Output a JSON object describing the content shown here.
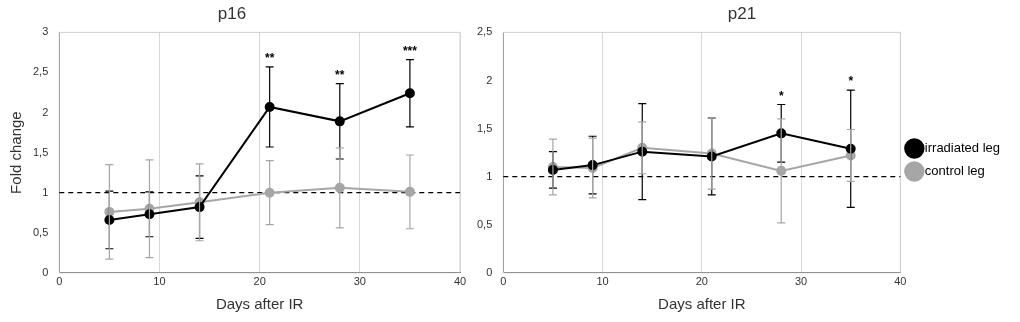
{
  "chart_data": [
    {
      "type": "line",
      "title": "p16",
      "x_label": "Days after IR",
      "y_label": "Fold change",
      "xlim": [
        0,
        40
      ],
      "xticks": [
        0,
        10,
        20,
        30,
        40
      ],
      "ylim": [
        0,
        3
      ],
      "yticks": [
        0,
        {
          "value": 0.5,
          "label": "0,5"
        },
        1,
        {
          "value": 1.5,
          "label": "1,5"
        },
        2,
        {
          "value": 2.5,
          "label": "2,5"
        },
        3
      ],
      "grid": "x",
      "reference_line": 1,
      "series": [
        {
          "name": "irradiated leg",
          "color": "#000000",
          "marker": "circle",
          "line_style": "solid",
          "x": [
            5,
            9,
            14,
            21,
            28,
            35
          ],
          "values": [
            0.66,
            0.73,
            0.82,
            2.07,
            1.89,
            2.24
          ],
          "errors": [
            0.36,
            0.28,
            0.39,
            0.5,
            0.47,
            0.42
          ]
        },
        {
          "name": "control leg",
          "color": "#a6a6a6",
          "marker": "circle",
          "line_style": "solid",
          "x": [
            5,
            9,
            14,
            21,
            28,
            35
          ],
          "values": [
            0.76,
            0.8,
            0.88,
            1.0,
            1.06,
            1.01
          ],
          "errors": [
            0.59,
            0.61,
            0.48,
            0.4,
            0.5,
            0.46
          ]
        }
      ],
      "annotations": [
        {
          "x": 21,
          "text": "**"
        },
        {
          "x": 28,
          "text": "**"
        },
        {
          "x": 35,
          "text": "***"
        }
      ]
    },
    {
      "type": "line",
      "title": "p21",
      "x_label": "Days after IR",
      "xlim": [
        0,
        40
      ],
      "xticks": [
        0,
        10,
        20,
        30,
        40
      ],
      "ylim": [
        0,
        2.5
      ],
      "yticks": [
        0,
        {
          "value": 0.5,
          "label": "0,5"
        },
        1,
        {
          "value": 1.5,
          "label": "1,5"
        },
        2,
        {
          "value": 2.5,
          "label": "2,5"
        }
      ],
      "grid": "x",
      "reference_line": 1,
      "legend": "right",
      "series": [
        {
          "name": "irradiated leg",
          "color": "#000000",
          "marker": "circle",
          "line_style": "solid",
          "x": [
            5,
            9,
            14,
            21,
            28,
            35
          ],
          "values": [
            1.07,
            1.12,
            1.26,
            1.21,
            1.45,
            1.29
          ],
          "errors": [
            0.19,
            0.3,
            0.5,
            0.4,
            0.3,
            0.61
          ]
        },
        {
          "name": "control leg",
          "color": "#a6a6a6",
          "marker": "circle",
          "line_style": "solid",
          "x": [
            5,
            9,
            14,
            21,
            28,
            35
          ],
          "values": [
            1.1,
            1.09,
            1.3,
            1.24,
            1.06,
            1.22
          ],
          "errors": [
            0.29,
            0.31,
            0.27,
            0.37,
            0.54,
            0.27
          ]
        }
      ],
      "annotations": [
        {
          "x": 28,
          "text": "*"
        },
        {
          "x": 35,
          "text": "*"
        }
      ]
    }
  ]
}
